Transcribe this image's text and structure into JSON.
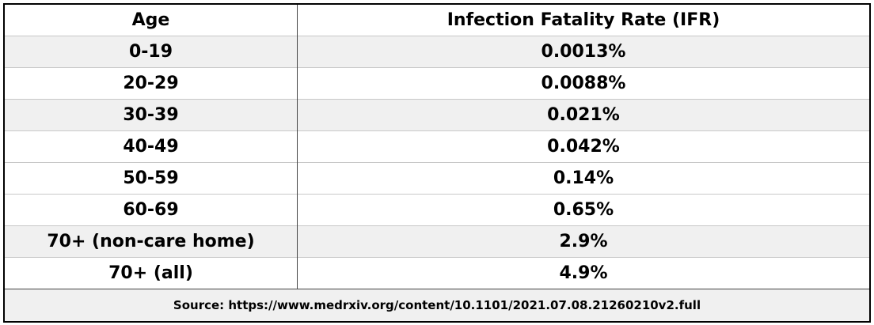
{
  "table": {
    "header": [
      "Age",
      "Infection Fatality Rate (IFR)"
    ],
    "rows": [
      [
        "0-19",
        "0.0013%"
      ],
      [
        "20-29",
        "0.0088%"
      ],
      [
        "30-39",
        "0.021%"
      ],
      [
        "40-49",
        "0.042%"
      ],
      [
        "50-59",
        "0.14%"
      ],
      [
        "60-69",
        "0.65%"
      ],
      [
        "70+ (non-care home)",
        "2.9%"
      ],
      [
        "70+ (all)",
        "4.9%"
      ]
    ],
    "source": "Source: https://www.medrxiv.org/content/10.1101/2021.07.08.21260210v2.full"
  }
}
